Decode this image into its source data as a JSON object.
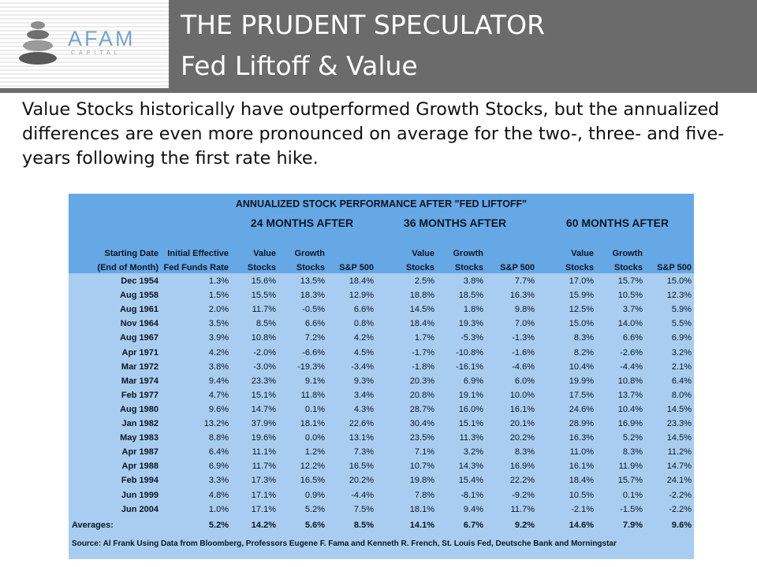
{
  "header": {
    "logo": {
      "main": "AFAM",
      "sub": "CAPITAL"
    },
    "title_line1": "THE PRUDENT SPECULATOR",
    "title_line2": "Fed Liftoff & Value"
  },
  "intro": "Value Stocks historically have outperformed Growth Stocks, but the annualized differences are even more pronounced on average for the two-, three- and five-years following the first rate hike.",
  "table": {
    "title": "ANNUALIZED STOCK PERFORMANCE AFTER \"FED LIFTOFF\"",
    "periods": [
      "24 MONTHS AFTER",
      "36 MONTHS AFTER",
      "60 MONTHS AFTER"
    ],
    "col_headers": [
      [
        "Starting Date",
        "(End of Month)"
      ],
      [
        "Initial Effective",
        "Fed Funds Rate"
      ],
      [
        "Value",
        "Stocks"
      ],
      [
        "Growth",
        "Stocks"
      ],
      [
        "",
        "S&P 500"
      ],
      [
        "Value",
        "Stocks"
      ],
      [
        "Growth",
        "Stocks"
      ],
      [
        "",
        "S&P 500"
      ],
      [
        "Value",
        "Stocks"
      ],
      [
        "Growth",
        "Stocks"
      ],
      [
        "",
        "S&P 500"
      ]
    ],
    "rows": [
      [
        "Dec 1954",
        "1.3%",
        "15.6%",
        "13.5%",
        "18.4%",
        "2.5%",
        "3.8%",
        "7.7%",
        "17.0%",
        "15.7%",
        "15.0%"
      ],
      [
        "Aug 1958",
        "1.5%",
        "15.5%",
        "18.3%",
        "12.9%",
        "18.8%",
        "18.5%",
        "16.3%",
        "15.9%",
        "10.5%",
        "12.3%"
      ],
      [
        "Aug 1961",
        "2.0%",
        "11.7%",
        "-0.5%",
        "6.6%",
        "14.5%",
        "1.8%",
        "9.8%",
        "12.5%",
        "3.7%",
        "5.9%"
      ],
      [
        "Nov 1964",
        "3.5%",
        "8.5%",
        "6.6%",
        "0.8%",
        "18.4%",
        "19.3%",
        "7.0%",
        "15.0%",
        "14.0%",
        "5.5%"
      ],
      [
        "Aug 1967",
        "3.9%",
        "10.8%",
        "7.2%",
        "4.2%",
        "1.7%",
        "-5.3%",
        "-1.3%",
        "8.3%",
        "6.6%",
        "6.9%"
      ],
      [
        "Apr 1971",
        "4.2%",
        "-2.0%",
        "-6.6%",
        "4.5%",
        "-1.7%",
        "-10.8%",
        "-1.6%",
        "8.2%",
        "-2.6%",
        "3.2%"
      ],
      [
        "Mar 1972",
        "3.8%",
        "-3.0%",
        "-19.3%",
        "-3.4%",
        "-1.8%",
        "-16.1%",
        "-4.6%",
        "10.4%",
        "-4.4%",
        "2.1%"
      ],
      [
        "Mar 1974",
        "9.4%",
        "23.3%",
        "9.1%",
        "9.3%",
        "20.3%",
        "6.9%",
        "6.0%",
        "19.9%",
        "10.8%",
        "6.4%"
      ],
      [
        "Feb 1977",
        "4.7%",
        "15.1%",
        "11.8%",
        "3.4%",
        "20.8%",
        "19.1%",
        "10.0%",
        "17.5%",
        "13.7%",
        "8.0%"
      ],
      [
        "Aug 1980",
        "9.6%",
        "14.7%",
        "0.1%",
        "4.3%",
        "28.7%",
        "16.0%",
        "16.1%",
        "24.6%",
        "10.4%",
        "14.5%"
      ],
      [
        "Jan 1982",
        "13.2%",
        "37.9%",
        "18.1%",
        "22.6%",
        "30.4%",
        "15.1%",
        "20.1%",
        "28.9%",
        "16.9%",
        "23.3%"
      ],
      [
        "May 1983",
        "8.8%",
        "19.6%",
        "0.0%",
        "13.1%",
        "23.5%",
        "11.3%",
        "20.2%",
        "16.3%",
        "5.2%",
        "14.5%"
      ],
      [
        "Apr 1987",
        "6.4%",
        "11.1%",
        "1.2%",
        "7.3%",
        "7.1%",
        "3.2%",
        "8.3%",
        "11.0%",
        "8.3%",
        "11.2%"
      ],
      [
        "Apr 1988",
        "6.9%",
        "11.7%",
        "12.2%",
        "16.5%",
        "10.7%",
        "14.3%",
        "16.9%",
        "16.1%",
        "11.9%",
        "14.7%"
      ],
      [
        "Feb 1994",
        "3.3%",
        "17.3%",
        "16.5%",
        "20.2%",
        "19.8%",
        "15.4%",
        "22.2%",
        "18.4%",
        "15.7%",
        "24.1%"
      ],
      [
        "Jun 1999",
        "4.8%",
        "17.1%",
        "0.9%",
        "-4.4%",
        "7.8%",
        "-8.1%",
        "-9.2%",
        "10.5%",
        "0.1%",
        "-2.2%"
      ],
      [
        "Jun 2004",
        "1.0%",
        "17.1%",
        "5.2%",
        "7.5%",
        "18.1%",
        "9.4%",
        "11.7%",
        "-2.1%",
        "-1.5%",
        "-2.2%"
      ]
    ],
    "averages": [
      "Averages:",
      "5.2%",
      "14.2%",
      "5.6%",
      "8.5%",
      "14.1%",
      "6.7%",
      "9.2%",
      "14.6%",
      "7.9%",
      "9.6%"
    ],
    "source": "Source: Al Frank Using Data from Bloomberg, Professors Eugene F. Fama and Kenneth R. French, St. Louis Fed, Deutsche Bank and Morningstar"
  },
  "colors": {
    "header_bg": "#6b6b6b",
    "table_head_bg": "#66a7e6",
    "table_body_bg": "#a9cdf0",
    "logo_blue": "#7aa2c9"
  },
  "icons": {
    "logo_mark": "stacked-stones-icon"
  }
}
